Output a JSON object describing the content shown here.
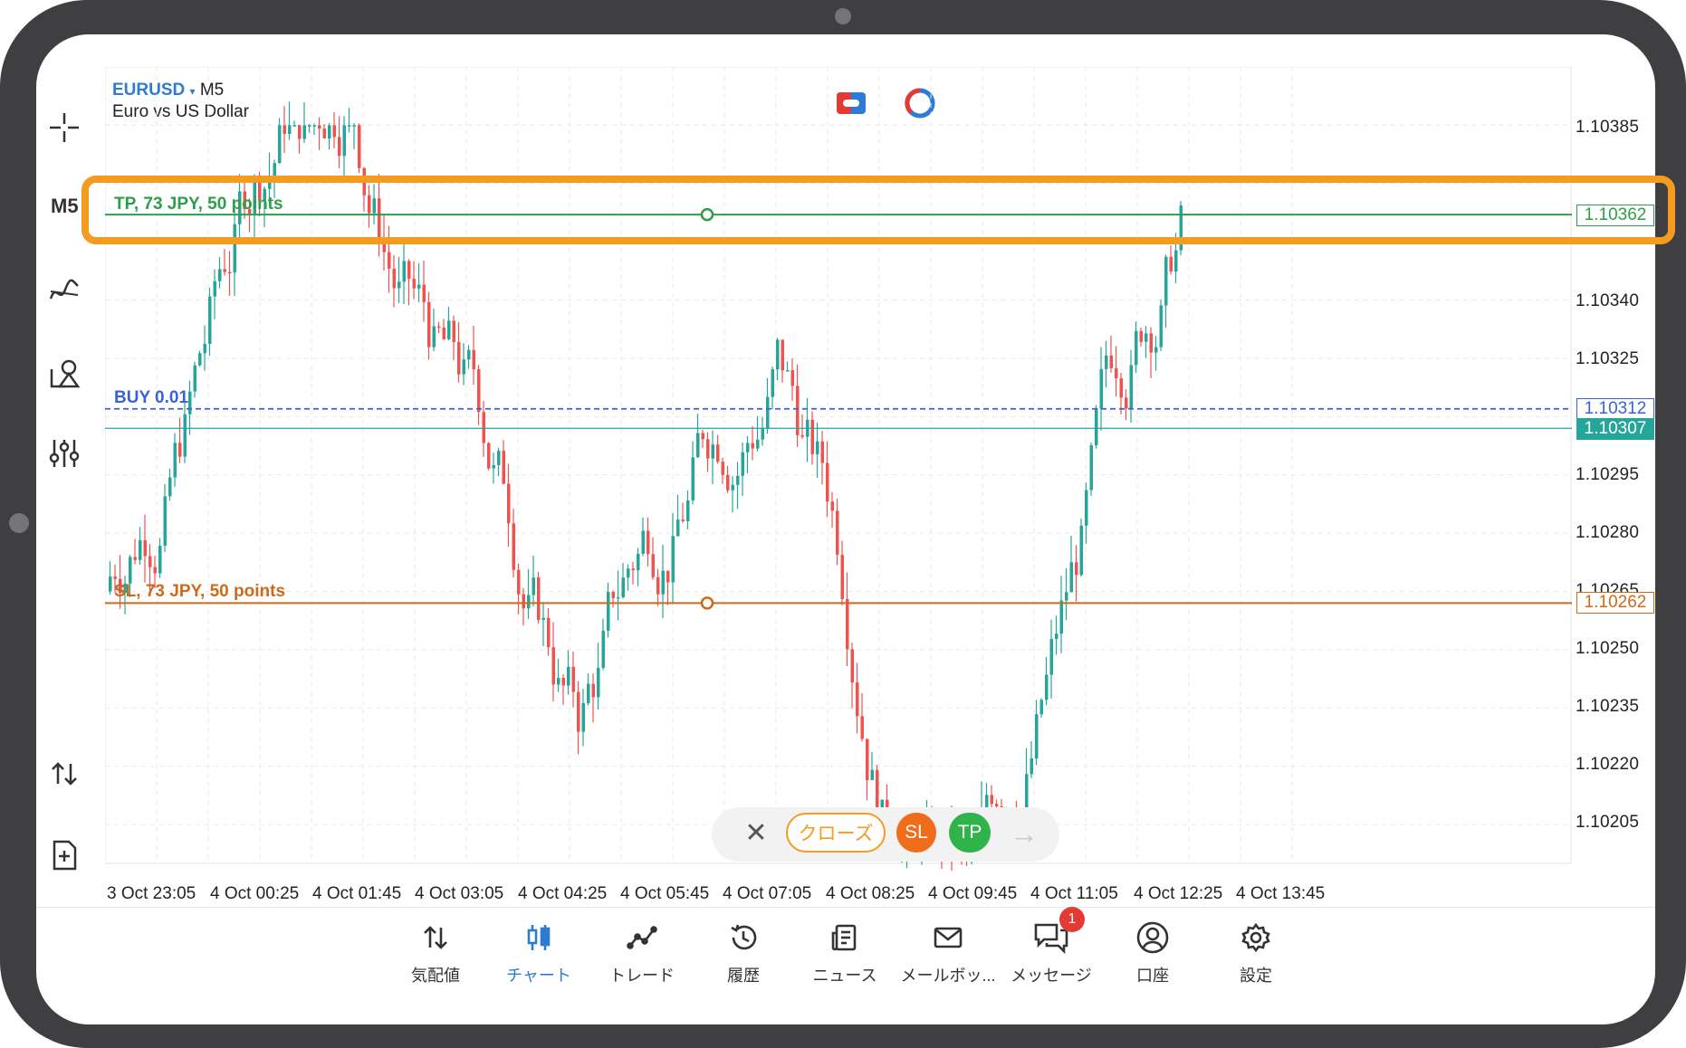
{
  "chart_header": {
    "symbol": "EURUSD",
    "symbol_caret": "▾",
    "timeframe": "M5",
    "description": "Euro vs US Dollar"
  },
  "toolbar": {
    "items": [
      {
        "name": "crosshair-icon"
      },
      {
        "name": "timeframe",
        "label": "M5"
      },
      {
        "name": "indicators-icon"
      },
      {
        "name": "objects-icon"
      },
      {
        "name": "settings-sliders-icon"
      },
      {
        "name": "one-click-trade-icon"
      },
      {
        "name": "new-order-icon"
      }
    ]
  },
  "price_axis": {
    "labels": [
      "1.10385",
      "1.10340",
      "1.10325",
      "1.10295",
      "1.10280",
      "1.10265",
      "1.10250",
      "1.10235",
      "1.10220",
      "1.10205"
    ]
  },
  "time_axis": {
    "labels": [
      "3 Oct 23:05",
      "4 Oct 00:25",
      "4 Oct 01:45",
      "4 Oct 03:05",
      "4 Oct 04:25",
      "4 Oct 05:45",
      "4 Oct 07:05",
      "4 Oct 08:25",
      "4 Oct 09:45",
      "4 Oct 11:05",
      "4 Oct 12:25",
      "4 Oct 13:45"
    ]
  },
  "levels": {
    "tp": {
      "label": "TP, 73 JPY, 50 points",
      "price": "1.10362",
      "color": "#2e9e48"
    },
    "buy": {
      "label": "BUY 0.01",
      "price": "1.10312",
      "color": "#3a62d6"
    },
    "bid": {
      "price": "1.10307",
      "color": "#26a69a"
    },
    "sl": {
      "label": "SL, 73 JPY, 50 points",
      "price": "1.10262",
      "color": "#cc6b1c"
    }
  },
  "actions": {
    "close_label": "クローズ",
    "sl_label": "SL",
    "tp_label": "TP"
  },
  "nav": {
    "items": [
      {
        "label": "気配値",
        "icon": "quotes-icon"
      },
      {
        "label": "チャート",
        "icon": "chart-icon"
      },
      {
        "label": "トレード",
        "icon": "trade-icon"
      },
      {
        "label": "履歴",
        "icon": "history-icon"
      },
      {
        "label": "ニュース",
        "icon": "news-icon"
      },
      {
        "label": "メールボッ...",
        "icon": "mail-icon"
      },
      {
        "label": "メッセージ",
        "icon": "messages-icon"
      },
      {
        "label": "口座",
        "icon": "account-icon"
      },
      {
        "label": "設定",
        "icon": "settings-icon"
      }
    ],
    "messages_badge": "1"
  },
  "colors": {
    "bull": "#26a69a",
    "bear": "#ef5350",
    "highlight": "#f39c1f",
    "accent": "#2e7bd6"
  },
  "chart_data": {
    "type": "candlestick",
    "symbol": "EURUSD",
    "timeframe": "M5",
    "ylim": [
      1.10195,
      1.104
    ],
    "seed_open": 1.10265,
    "levels": {
      "tp": 1.10362,
      "buy": 1.10312,
      "bid": 1.10307,
      "sl": 1.10262
    }
  }
}
